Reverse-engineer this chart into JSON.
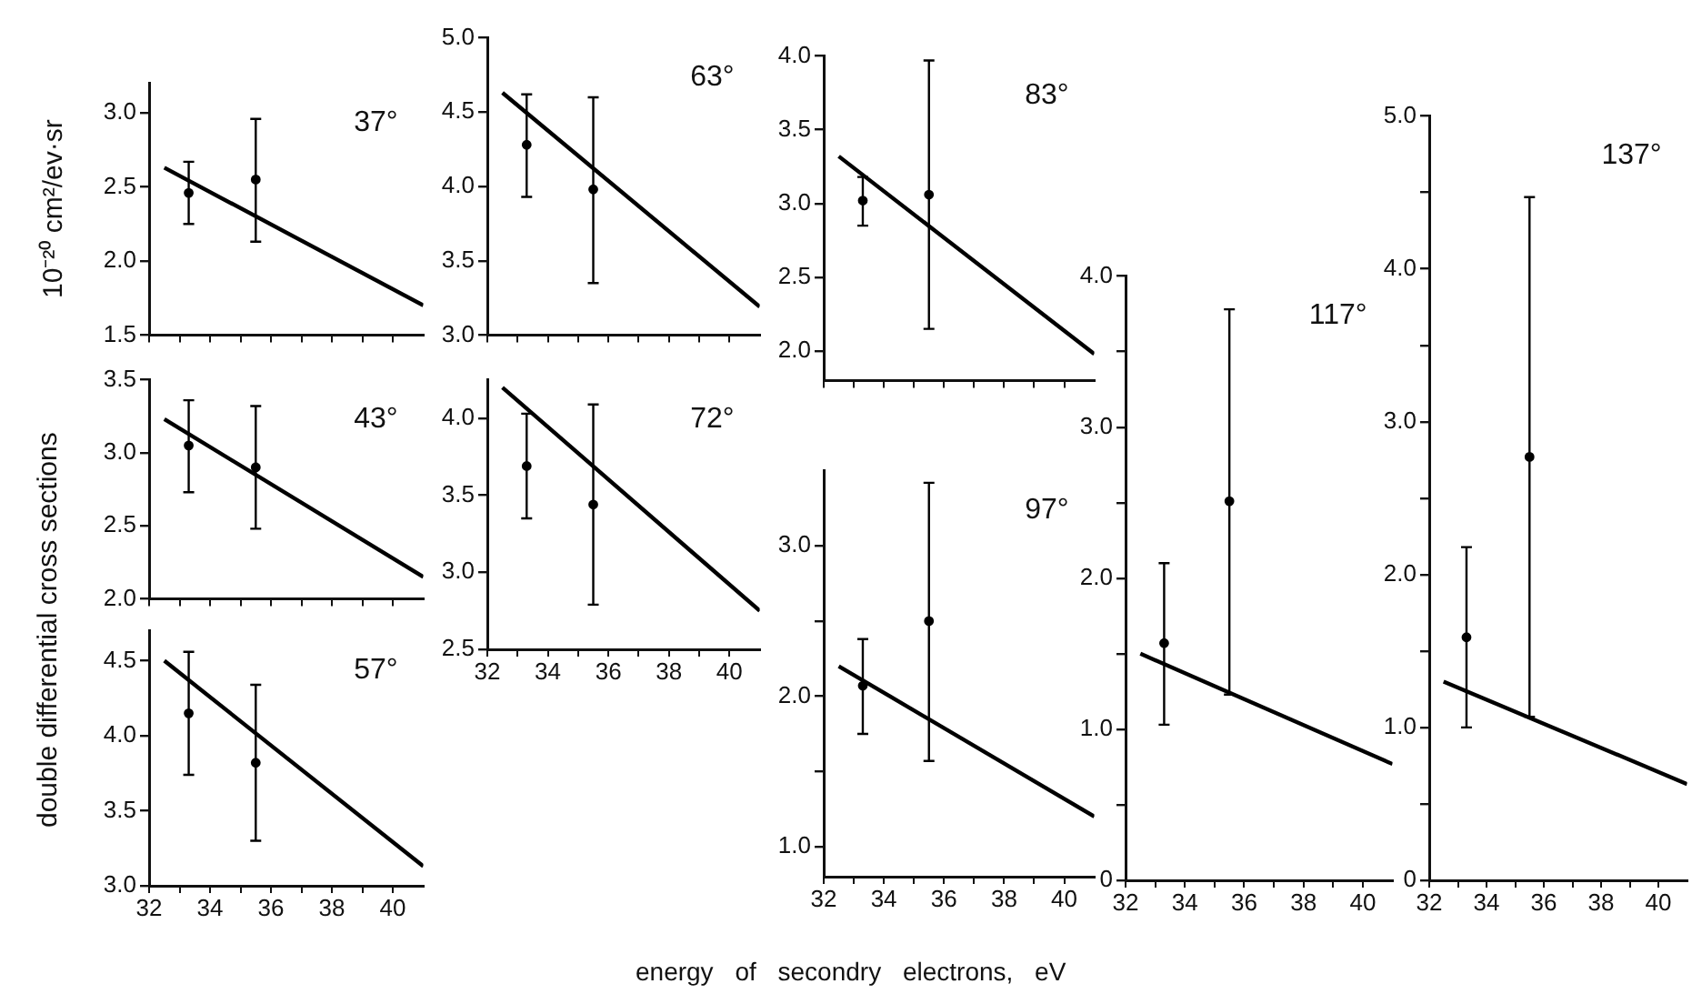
{
  "chart_data": [
    {
      "type": "line",
      "ylabel": "10⁻²⁰ cm²/ev·sr",
      "annotations": [
        "37°"
      ],
      "tick_labels": "y",
      "marker": "none",
      "grid": false,
      "xlim": [
        32,
        41
      ],
      "xticks": [
        32,
        {
          "value": 33,
          "label": null
        },
        34,
        {
          "value": 35,
          "label": null
        },
        36,
        {
          "value": 37,
          "label": null
        },
        38,
        {
          "value": 39,
          "label": null
        },
        40
      ],
      "ylim": [
        1.5,
        3.2
      ],
      "yticks": [
        1.5,
        {
          "value": 2,
          "label": "2.0"
        },
        2.5,
        {
          "value": 3,
          "label": "3.0"
        }
      ],
      "series": [
        {
          "type": "line",
          "color": "#000000",
          "x": [
            32.5,
            41
          ],
          "values": [
            2.63,
            1.7
          ]
        },
        {
          "type": "scatter",
          "color": "#000000",
          "x": [
            33.3,
            35.5
          ],
          "marker": "circle",
          "values": [
            2.46,
            2.55
          ],
          "errors": [
            [
              2.25,
              2.67
            ],
            [
              2.13,
              2.96
            ]
          ]
        }
      ]
    },
    {
      "type": "line",
      "ylabel": "double differential cross sections",
      "annotations": [
        "43°"
      ],
      "tick_labels": "y",
      "marker": "none",
      "grid": false,
      "xlim": [
        32,
        41
      ],
      "xticks": [
        32,
        {
          "value": 33,
          "label": null
        },
        34,
        {
          "value": 35,
          "label": null
        },
        36,
        {
          "value": 37,
          "label": null
        },
        38,
        {
          "value": 39,
          "label": null
        },
        40
      ],
      "ylim": [
        2,
        3.5
      ],
      "yticks": [
        {
          "value": 2,
          "label": "2.0"
        },
        2.5,
        {
          "value": 3,
          "label": "3.0"
        },
        3.5
      ],
      "series": [
        {
          "type": "line",
          "color": "#000000",
          "x": [
            32.5,
            41
          ],
          "values": [
            3.23,
            2.15
          ]
        },
        {
          "type": "scatter",
          "color": "#000000",
          "x": [
            33.3,
            35.5
          ],
          "marker": "circle",
          "values": [
            3.05,
            2.9
          ],
          "errors": [
            [
              2.73,
              3.36
            ],
            [
              2.48,
              3.32
            ]
          ]
        }
      ]
    },
    {
      "type": "line",
      "annotations": [
        "57°"
      ],
      "marker": "none",
      "grid": false,
      "xlim": [
        32,
        41
      ],
      "xticks": [
        32,
        {
          "value": 33,
          "label": null
        },
        34,
        {
          "value": 35,
          "label": null
        },
        36,
        {
          "value": 37,
          "label": null
        },
        38,
        {
          "value": 39,
          "label": null
        },
        40
      ],
      "ylim": [
        3,
        4.7
      ],
      "yticks": [
        {
          "value": 3,
          "label": "3.0"
        },
        3.5,
        {
          "value": 4,
          "label": "4.0"
        },
        4.5
      ],
      "series": [
        {
          "type": "line",
          "color": "#000000",
          "x": [
            32.5,
            41
          ],
          "values": [
            4.5,
            3.13
          ]
        },
        {
          "type": "scatter",
          "color": "#000000",
          "x": [
            33.3,
            35.5
          ],
          "marker": "circle",
          "values": [
            4.15,
            3.82
          ],
          "errors": [
            [
              3.74,
              4.56
            ],
            [
              3.3,
              4.34
            ]
          ]
        }
      ]
    },
    {
      "type": "line",
      "annotations": [
        "63°"
      ],
      "tick_labels": "y",
      "marker": "none",
      "grid": false,
      "xlim": [
        32,
        41
      ],
      "xticks": [
        32,
        {
          "value": 33,
          "label": null
        },
        34,
        {
          "value": 35,
          "label": null
        },
        36,
        {
          "value": 37,
          "label": null
        },
        38,
        {
          "value": 39,
          "label": null
        },
        40
      ],
      "ylim": [
        3,
        5
      ],
      "yticks": [
        {
          "value": 3,
          "label": "3.0"
        },
        3.5,
        {
          "value": 4,
          "label": "4.0"
        },
        4.5,
        {
          "value": 5,
          "label": "5.0"
        }
      ],
      "series": [
        {
          "type": "line",
          "color": "#000000",
          "x": [
            32.5,
            41
          ],
          "values": [
            4.63,
            3.19
          ]
        },
        {
          "type": "scatter",
          "color": "#000000",
          "x": [
            33.3,
            35.5
          ],
          "marker": "circle",
          "values": [
            4.28,
            3.98
          ],
          "errors": [
            [
              3.93,
              4.62
            ],
            [
              3.35,
              4.6
            ]
          ]
        }
      ]
    },
    {
      "type": "line",
      "annotations": [
        "72°"
      ],
      "marker": "none",
      "grid": false,
      "xlim": [
        32,
        41
      ],
      "xticks": [
        32,
        {
          "value": 33,
          "label": null
        },
        34,
        {
          "value": 35,
          "label": null
        },
        36,
        {
          "value": 37,
          "label": null
        },
        38,
        {
          "value": 39,
          "label": null
        },
        40
      ],
      "ylim": [
        2.5,
        4.25
      ],
      "yticks": [
        2.5,
        {
          "value": 3,
          "label": "3.0"
        },
        3.5,
        {
          "value": 4,
          "label": "4.0"
        }
      ],
      "series": [
        {
          "type": "line",
          "color": "#000000",
          "x": [
            32.5,
            41
          ],
          "values": [
            4.2,
            2.75
          ]
        },
        {
          "type": "scatter",
          "color": "#000000",
          "x": [
            33.3,
            35.5
          ],
          "marker": "circle",
          "values": [
            3.69,
            3.44
          ],
          "errors": [
            [
              3.35,
              4.03
            ],
            [
              2.79,
              4.09
            ]
          ]
        }
      ]
    },
    {
      "type": "line",
      "annotations": [
        "83°"
      ],
      "tick_labels": "y",
      "marker": "none",
      "grid": false,
      "xlim": [
        32,
        41
      ],
      "xticks": [
        32,
        {
          "value": 33,
          "label": null
        },
        34,
        {
          "value": 35,
          "label": null
        },
        36,
        {
          "value": 37,
          "label": null
        },
        38,
        {
          "value": 39,
          "label": null
        },
        40
      ],
      "ylim": [
        1.8,
        4
      ],
      "yticks": [
        {
          "value": 2,
          "label": "2.0"
        },
        2.5,
        {
          "value": 3,
          "label": "3.0"
        },
        3.5,
        {
          "value": 4,
          "label": "4.0"
        }
      ],
      "series": [
        {
          "type": "line",
          "color": "#000000",
          "x": [
            32.5,
            41
          ],
          "values": [
            3.32,
            1.98
          ]
        },
        {
          "type": "scatter",
          "color": "#000000",
          "x": [
            33.3,
            35.5
          ],
          "marker": "circle",
          "values": [
            3.02,
            3.06
          ],
          "errors": [
            [
              2.85,
              3.18
            ],
            [
              2.15,
              3.97
            ]
          ]
        }
      ]
    },
    {
      "type": "line",
      "xlabel": "energy of secondry electrons, eV",
      "annotations": [
        "97°"
      ],
      "marker": "none",
      "grid": false,
      "xlim": [
        32,
        41
      ],
      "xticks": [
        32,
        {
          "value": 33,
          "label": null
        },
        34,
        {
          "value": 35,
          "label": null
        },
        36,
        {
          "value": 37,
          "label": null
        },
        38,
        {
          "value": 39,
          "label": null
        },
        40
      ],
      "ylim": [
        0.8,
        3.5
      ],
      "yticks": [
        {
          "value": 1,
          "label": "1.0"
        },
        {
          "value": 1.5,
          "label": null
        },
        {
          "value": 2,
          "label": "2.0"
        },
        {
          "value": 2.5,
          "label": null
        },
        {
          "value": 3,
          "label": "3.0"
        }
      ],
      "series": [
        {
          "type": "line",
          "color": "#000000",
          "x": [
            32.5,
            41
          ],
          "values": [
            2.2,
            1.2
          ]
        },
        {
          "type": "scatter",
          "color": "#000000",
          "x": [
            33.3,
            35.5
          ],
          "marker": "circle",
          "values": [
            2.07,
            2.5
          ],
          "errors": [
            [
              1.75,
              2.38
            ],
            [
              1.57,
              3.42
            ]
          ]
        }
      ]
    },
    {
      "type": "line",
      "annotations": [
        "117°"
      ],
      "marker": "none",
      "grid": false,
      "xlim": [
        32,
        41
      ],
      "xticks": [
        32,
        {
          "value": 33,
          "label": null
        },
        34,
        {
          "value": 35,
          "label": null
        },
        36,
        {
          "value": 37,
          "label": null
        },
        38,
        {
          "value": 39,
          "label": null
        },
        40
      ],
      "ylim": [
        0,
        4
      ],
      "yticks": [
        0,
        {
          "value": 0.5,
          "label": null
        },
        {
          "value": 1,
          "label": "1.0"
        },
        {
          "value": 1.5,
          "label": null
        },
        {
          "value": 2,
          "label": "2.0"
        },
        {
          "value": 2.5,
          "label": null
        },
        {
          "value": 3,
          "label": "3.0"
        },
        {
          "value": 3.5,
          "label": null
        },
        {
          "value": 4,
          "label": "4.0"
        }
      ],
      "series": [
        {
          "type": "line",
          "color": "#000000",
          "x": [
            32.5,
            41
          ],
          "values": [
            1.5,
            0.77
          ]
        },
        {
          "type": "scatter",
          "color": "#000000",
          "x": [
            33.3,
            35.5
          ],
          "marker": "circle",
          "values": [
            1.57,
            2.51
          ],
          "errors": [
            [
              1.03,
              2.1
            ],
            [
              1.23,
              3.78
            ]
          ]
        }
      ]
    },
    {
      "type": "line",
      "annotations": [
        "137°"
      ],
      "marker": "none",
      "grid": false,
      "xlim": [
        32,
        41
      ],
      "xticks": [
        32,
        {
          "value": 33,
          "label": null
        },
        34,
        {
          "value": 35,
          "label": null
        },
        36,
        {
          "value": 37,
          "label": null
        },
        38,
        {
          "value": 39,
          "label": null
        },
        40
      ],
      "ylim": [
        0,
        5
      ],
      "yticks": [
        0,
        {
          "value": 0.5,
          "label": null
        },
        {
          "value": 1,
          "label": "1.0"
        },
        {
          "value": 1.5,
          "label": null
        },
        {
          "value": 2,
          "label": "2.0"
        },
        {
          "value": 2.5,
          "label": null
        },
        {
          "value": 3,
          "label": "3.0"
        },
        {
          "value": 3.5,
          "label": null
        },
        {
          "value": 4,
          "label": "4.0"
        },
        {
          "value": 4.5,
          "label": null
        },
        {
          "value": 5,
          "label": "5.0"
        }
      ],
      "series": [
        {
          "type": "line",
          "color": "#000000",
          "x": [
            32.5,
            41
          ],
          "values": [
            1.3,
            0.63
          ]
        },
        {
          "type": "scatter",
          "color": "#000000",
          "x": [
            33.3,
            35.5
          ],
          "marker": "circle",
          "values": [
            1.59,
            2.77
          ],
          "errors": [
            [
              1,
              2.18
            ],
            [
              1.07,
              4.47
            ]
          ]
        }
      ]
    }
  ]
}
